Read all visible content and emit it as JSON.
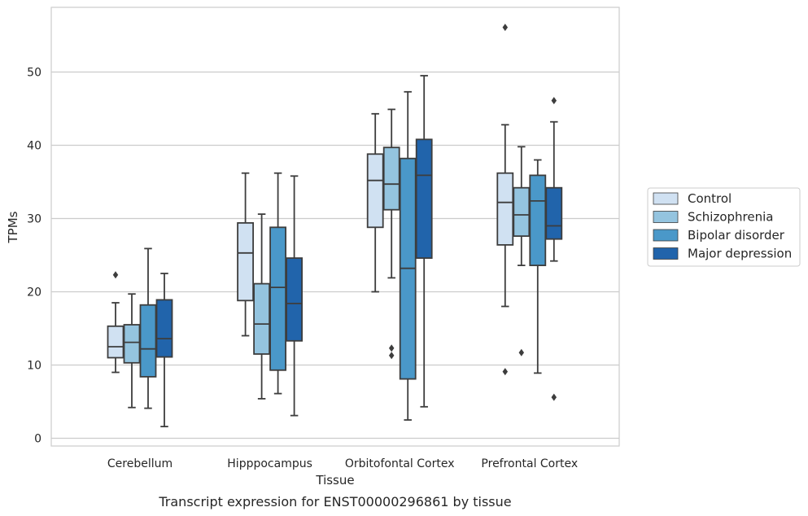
{
  "chart_data": {
    "type": "box",
    "caption": "Transcript expression for ENST00000296861 by tissue",
    "xlabel": "Tissue",
    "ylabel": "TPMs",
    "ylim": [
      -1,
      59
    ],
    "yticks": [
      "0",
      "10",
      "20",
      "30",
      "40",
      "50"
    ],
    "grid": "horizontal",
    "legend_position": "right",
    "categories": [
      "Cerebellum",
      "Hipppocampus",
      "Orbitofontal Cortex",
      "Prefrontal Cortex"
    ],
    "series": [
      {
        "name": "Control",
        "color": "#d0e1f2",
        "boxes": [
          {
            "whislo": 9.0,
            "q1": 11.0,
            "med": 12.5,
            "q3": 15.3,
            "whishi": 18.5,
            "fliers": [
              22.3
            ]
          },
          {
            "whislo": 14.0,
            "q1": 18.8,
            "med": 25.3,
            "q3": 29.4,
            "whishi": 36.2,
            "fliers": []
          },
          {
            "whislo": 20.0,
            "q1": 28.8,
            "med": 35.2,
            "q3": 38.8,
            "whishi": 44.3,
            "fliers": []
          },
          {
            "whislo": 18.0,
            "q1": 26.4,
            "med": 32.2,
            "q3": 36.2,
            "whishi": 42.8,
            "fliers": [
              9.1,
              56.1
            ]
          }
        ]
      },
      {
        "name": "Schizophrenia",
        "color": "#94c4df",
        "boxes": [
          {
            "whislo": 4.2,
            "q1": 10.3,
            "med": 13.1,
            "q3": 15.5,
            "whishi": 19.7,
            "fliers": []
          },
          {
            "whislo": 5.4,
            "q1": 11.5,
            "med": 15.6,
            "q3": 21.1,
            "whishi": 30.6,
            "fliers": []
          },
          {
            "whislo": 21.9,
            "q1": 31.2,
            "med": 34.7,
            "q3": 39.7,
            "whishi": 44.9,
            "fliers": [
              11.3,
              12.3
            ]
          },
          {
            "whislo": 23.6,
            "q1": 27.6,
            "med": 30.5,
            "q3": 34.2,
            "whishi": 39.8,
            "fliers": [
              11.7
            ]
          }
        ]
      },
      {
        "name": "Bipolar disorder",
        "color": "#4a98c9",
        "boxes": [
          {
            "whislo": 4.1,
            "q1": 8.4,
            "med": 12.2,
            "q3": 18.2,
            "whishi": 25.9,
            "fliers": []
          },
          {
            "whislo": 6.1,
            "q1": 9.3,
            "med": 20.6,
            "q3": 28.8,
            "whishi": 36.2,
            "fliers": []
          },
          {
            "whislo": 2.5,
            "q1": 8.1,
            "med": 23.2,
            "q3": 38.2,
            "whishi": 47.3,
            "fliers": []
          },
          {
            "whislo": 8.9,
            "q1": 23.6,
            "med": 32.4,
            "q3": 35.9,
            "whishi": 38.0,
            "fliers": []
          }
        ]
      },
      {
        "name": "Major depression",
        "color": "#2164ab",
        "boxes": [
          {
            "whislo": 1.6,
            "q1": 11.1,
            "med": 13.6,
            "q3": 18.9,
            "whishi": 22.5,
            "fliers": []
          },
          {
            "whislo": 3.1,
            "q1": 13.3,
            "med": 18.4,
            "q3": 24.6,
            "whishi": 35.8,
            "fliers": []
          },
          {
            "whislo": 4.3,
            "q1": 24.6,
            "med": 35.9,
            "q3": 40.8,
            "whishi": 49.5,
            "fliers": []
          },
          {
            "whislo": 24.2,
            "q1": 27.2,
            "med": 29.0,
            "q3": 34.2,
            "whishi": 43.2,
            "fliers": [
              5.6,
              46.1
            ]
          }
        ]
      }
    ]
  }
}
